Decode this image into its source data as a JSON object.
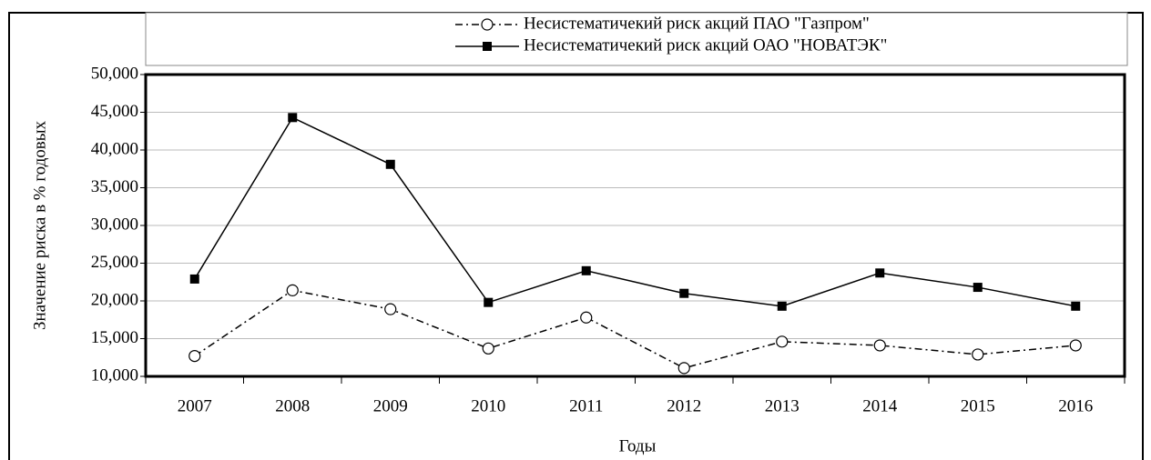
{
  "chart_data": {
    "type": "line",
    "x_label": "Годы",
    "y_label": "Значение риска в % годовых",
    "categories": [
      "2007",
      "2008",
      "2009",
      "2010",
      "2011",
      "2012",
      "2013",
      "2014",
      "2015",
      "2016"
    ],
    "series": [
      {
        "name": "Несистематичекий риск акций ПАО \"Газпром\"",
        "color": "#000000",
        "dash": "dashdot",
        "marker": "open-circle",
        "values": [
          12.7,
          21.4,
          18.9,
          13.7,
          17.8,
          11.1,
          14.6,
          14.1,
          12.9,
          14.1
        ]
      },
      {
        "name": "Несистематичекий риск акций ОАО \"НОВАТЭК\"",
        "color": "#000000",
        "dash": "solid",
        "marker": "filled-square",
        "values": [
          22.9,
          44.3,
          38.1,
          19.8,
          24.0,
          21.0,
          19.3,
          23.7,
          21.8,
          19.3
        ]
      }
    ],
    "ylim": [
      10,
      50
    ],
    "yticks": [
      {
        "value": 10,
        "label": "10,000"
      },
      {
        "value": 15,
        "label": "15,000"
      },
      {
        "value": 20,
        "label": "20,000"
      },
      {
        "value": 25,
        "label": "25,000"
      },
      {
        "value": 30,
        "label": "30,000"
      },
      {
        "value": 35,
        "label": "35,000"
      },
      {
        "value": 40,
        "label": "40,000"
      },
      {
        "value": 45,
        "label": "45,000"
      },
      {
        "value": 50,
        "label": "50,000"
      }
    ],
    "grid": true,
    "legend": "top"
  }
}
